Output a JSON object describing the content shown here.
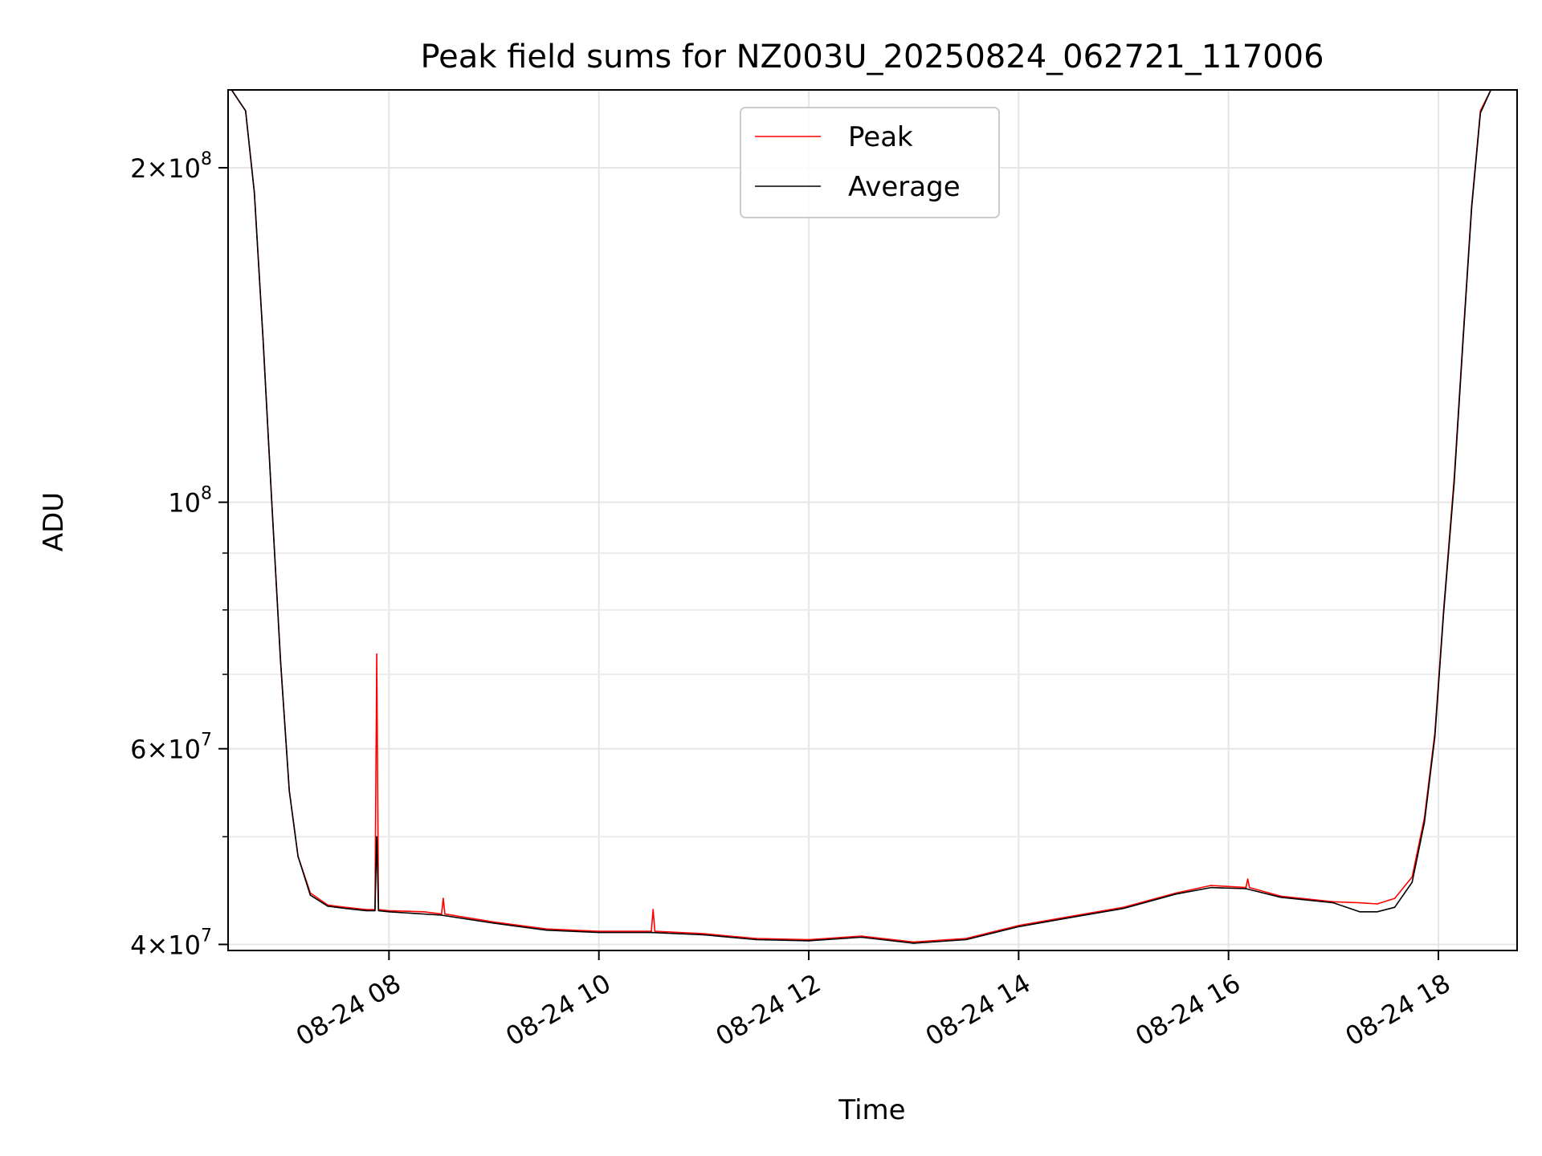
{
  "chart_data": {
    "type": "line",
    "title": "Peak field sums for NZ003U_20250824_062721_117006",
    "xlabel": "Time",
    "ylabel": "ADU",
    "x_range": [
      "2025-08-24T06:28",
      "2025-08-24T18:45"
    ],
    "ylim": [
      39500000,
      235000000
    ],
    "y_scale": "log",
    "grid": true,
    "legend_position": "top-center",
    "x_ticks": [
      {
        "value": "2025-08-24T08:00",
        "label": "08-24 08"
      },
      {
        "value": "2025-08-24T10:00",
        "label": "08-24 10"
      },
      {
        "value": "2025-08-24T12:00",
        "label": "08-24 12"
      },
      {
        "value": "2025-08-24T14:00",
        "label": "08-24 14"
      },
      {
        "value": "2025-08-24T16:00",
        "label": "08-24 16"
      },
      {
        "value": "2025-08-24T18:00",
        "label": "08-24 18"
      }
    ],
    "y_major_ticks": [
      {
        "value": 40000000,
        "mantissa": "4",
        "exponent": "7"
      },
      {
        "value": 60000000,
        "mantissa": "6",
        "exponent": "7"
      },
      {
        "value": 100000000,
        "mantissa": "",
        "exponent": "8"
      },
      {
        "value": 200000000,
        "mantissa": "2",
        "exponent": "8"
      }
    ],
    "y_minor_ticks": [
      50000000,
      70000000,
      80000000,
      90000000
    ],
    "series": [
      {
        "name": "Peak",
        "color": "#ff0000",
        "x": [
          "2025-08-24T06:30",
          "2025-08-24T06:38",
          "2025-08-24T06:43",
          "2025-08-24T06:48",
          "2025-08-24T06:53",
          "2025-08-24T06:58",
          "2025-08-24T07:03",
          "2025-08-24T07:08",
          "2025-08-24T07:15",
          "2025-08-24T07:25",
          "2025-08-24T07:35",
          "2025-08-24T07:47",
          "2025-08-24T07:52",
          "2025-08-24T07:53",
          "2025-08-24T07:54",
          "2025-08-24T08:00",
          "2025-08-24T08:20",
          "2025-08-24T08:30",
          "2025-08-24T08:31",
          "2025-08-24T08:32",
          "2025-08-24T09:00",
          "2025-08-24T09:30",
          "2025-08-24T10:00",
          "2025-08-24T10:30",
          "2025-08-24T10:31",
          "2025-08-24T10:32",
          "2025-08-24T11:00",
          "2025-08-24T11:30",
          "2025-08-24T12:00",
          "2025-08-24T12:30",
          "2025-08-24T13:00",
          "2025-08-24T13:30",
          "2025-08-24T14:00",
          "2025-08-24T14:30",
          "2025-08-24T15:00",
          "2025-08-24T15:30",
          "2025-08-24T15:50",
          "2025-08-24T16:10",
          "2025-08-24T16:11",
          "2025-08-24T16:12",
          "2025-08-24T16:30",
          "2025-08-24T17:00",
          "2025-08-24T17:15",
          "2025-08-24T17:25",
          "2025-08-24T17:35",
          "2025-08-24T17:45",
          "2025-08-24T17:52",
          "2025-08-24T17:58",
          "2025-08-24T18:03",
          "2025-08-24T18:09",
          "2025-08-24T18:14",
          "2025-08-24T18:19",
          "2025-08-24T18:24",
          "2025-08-24T18:30"
        ],
        "values": [
          235000000,
          225000000,
          190000000,
          140000000,
          100000000,
          72000000,
          55000000,
          48000000,
          44500000,
          43400000,
          43200000,
          43000000,
          43000000,
          73000000,
          43000000,
          42900000,
          42800000,
          42600000,
          44000000,
          42600000,
          41900000,
          41300000,
          41100000,
          41100000,
          43000000,
          41100000,
          40900000,
          40500000,
          40400000,
          40700000,
          40200000,
          40500000,
          41600000,
          42400000,
          43200000,
          44500000,
          45200000,
          45000000,
          45800000,
          45000000,
          44200000,
          43700000,
          43600000,
          43500000,
          44000000,
          46000000,
          52000000,
          62000000,
          80000000,
          105000000,
          140000000,
          185000000,
          225000000,
          235000000
        ]
      },
      {
        "name": "Average",
        "color": "#000000",
        "x": [
          "2025-08-24T06:30",
          "2025-08-24T06:38",
          "2025-08-24T06:43",
          "2025-08-24T06:48",
          "2025-08-24T06:53",
          "2025-08-24T06:58",
          "2025-08-24T07:03",
          "2025-08-24T07:08",
          "2025-08-24T07:15",
          "2025-08-24T07:25",
          "2025-08-24T07:35",
          "2025-08-24T07:47",
          "2025-08-24T07:52",
          "2025-08-24T07:53",
          "2025-08-24T07:54",
          "2025-08-24T08:00",
          "2025-08-24T08:30",
          "2025-08-24T09:00",
          "2025-08-24T09:30",
          "2025-08-24T10:00",
          "2025-08-24T10:30",
          "2025-08-24T11:00",
          "2025-08-24T11:30",
          "2025-08-24T12:00",
          "2025-08-24T12:30",
          "2025-08-24T13:00",
          "2025-08-24T13:30",
          "2025-08-24T14:00",
          "2025-08-24T14:30",
          "2025-08-24T15:00",
          "2025-08-24T15:30",
          "2025-08-24T15:50",
          "2025-08-24T16:10",
          "2025-08-24T16:30",
          "2025-08-24T17:00",
          "2025-08-24T17:15",
          "2025-08-24T17:25",
          "2025-08-24T17:35",
          "2025-08-24T17:45",
          "2025-08-24T17:52",
          "2025-08-24T17:58",
          "2025-08-24T18:03",
          "2025-08-24T18:09",
          "2025-08-24T18:14",
          "2025-08-24T18:19",
          "2025-08-24T18:24",
          "2025-08-24T18:30"
        ],
        "values": [
          235000000,
          225000000,
          190000000,
          140000000,
          100000000,
          72000000,
          55000000,
          48000000,
          44300000,
          43300000,
          43100000,
          42900000,
          42900000,
          50000000,
          42900000,
          42800000,
          42500000,
          41800000,
          41200000,
          41000000,
          41000000,
          40800000,
          40400000,
          40300000,
          40600000,
          40100000,
          40400000,
          41500000,
          42300000,
          43100000,
          44400000,
          45000000,
          44900000,
          44100000,
          43600000,
          42800000,
          42800000,
          43200000,
          45500000,
          51500000,
          61500000,
          79500000,
          104000000,
          139000000,
          184000000,
          224000000,
          235000000
        ]
      }
    ]
  }
}
